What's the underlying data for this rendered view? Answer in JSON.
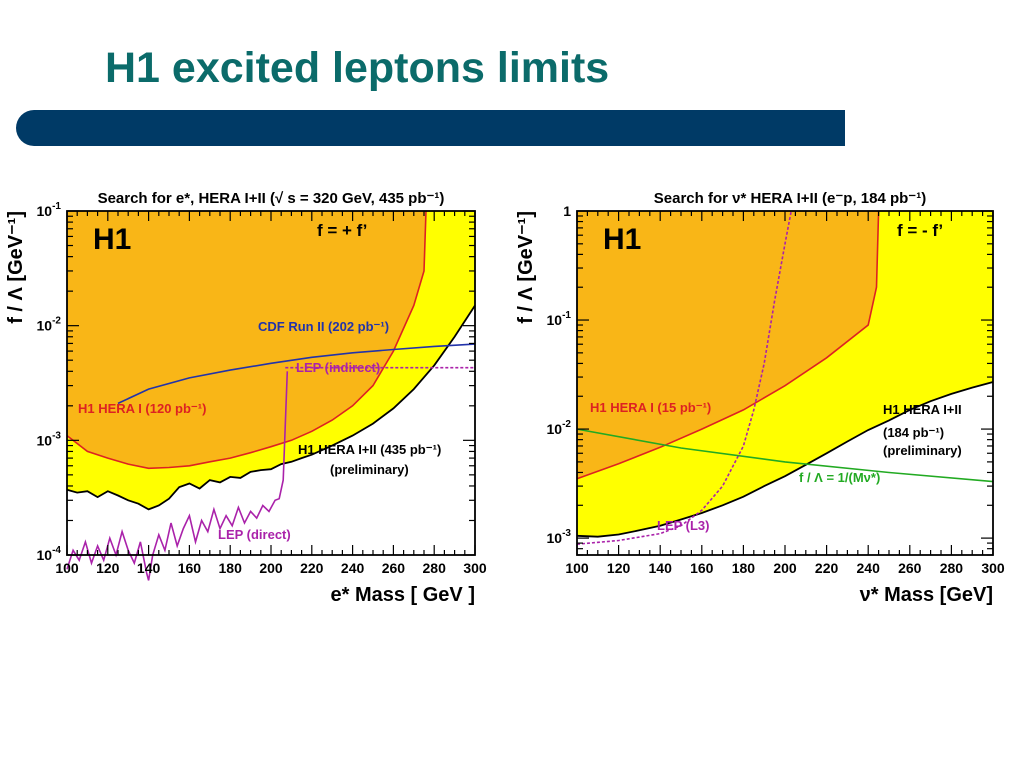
{
  "slide": {
    "title": "H1 excited leptons limits"
  },
  "colors": {
    "title": "#0b6b6a",
    "bar": "#003a66",
    "excluded_h1_hera_i": "#f9b617",
    "excluded_h1_hera_i_ii": "#ffff00",
    "cdf": "#2233aa",
    "lep": "#aa22aa",
    "hera_i_line": "#dd2222",
    "contact": "#22aa22"
  },
  "chart_data": [
    {
      "type": "area",
      "title": "Search for e*, HERA I+II (√ s = 320 GeV, 435 pb⁻¹)",
      "xlabel": "e* Mass [ GeV ]",
      "ylabel": "f / Λ [GeV⁻¹]",
      "xlim": [
        100,
        300
      ],
      "ylim": [
        0.0001,
        0.1
      ],
      "yscale": "log",
      "xticks": [
        "100",
        "120",
        "140",
        "160",
        "180",
        "200",
        "220",
        "240",
        "260",
        "280",
        "300"
      ],
      "yticks": [
        {
          "base": "10",
          "exp": "-4",
          "value": 0.0001
        },
        {
          "base": "10",
          "exp": "-3",
          "value": 0.001
        },
        {
          "base": "10",
          "exp": "-2",
          "value": 0.01
        },
        {
          "base": "10",
          "exp": "-1",
          "value": 0.1
        }
      ],
      "experiment_label": "H1",
      "coupling_label": "f = + f’",
      "series": [
        {
          "name": "H1 HERA I (120 pb-1)",
          "label": "H1 HERA I (120 pb⁻¹)",
          "role": "excluded-region-boundary",
          "x": [
            100,
            110,
            120,
            130,
            140,
            150,
            160,
            170,
            180,
            190,
            200,
            210,
            220,
            230,
            240,
            250,
            260,
            270,
            275,
            276
          ],
          "y": [
            0.0011,
            0.0008,
            0.0007,
            0.00062,
            0.00057,
            0.00058,
            0.0006,
            0.00065,
            0.0007,
            0.00078,
            0.00088,
            0.001,
            0.0012,
            0.0015,
            0.002,
            0.003,
            0.006,
            0.015,
            0.03,
            0.1
          ]
        },
        {
          "name": "H1 HERA I+II (435 pb-1) (preliminary)",
          "label": "H1 HERA I+II (435 pb⁻¹)",
          "label2": "(preliminary)",
          "role": "excluded-region-boundary",
          "x": [
            100,
            105,
            110,
            115,
            120,
            125,
            130,
            135,
            140,
            145,
            150,
            155,
            160,
            165,
            170,
            175,
            180,
            185,
            190,
            195,
            200,
            205,
            210,
            215,
            220,
            230,
            240,
            250,
            260,
            270,
            280,
            290,
            300
          ],
          "y": [
            0.00037,
            0.00035,
            0.00036,
            0.00032,
            0.00036,
            0.00033,
            0.0003,
            0.00028,
            0.00025,
            0.00027,
            0.00031,
            0.00039,
            0.00042,
            0.00038,
            0.00045,
            0.00043,
            0.00048,
            0.00047,
            0.00053,
            0.00055,
            0.00056,
            0.00062,
            0.00065,
            0.0007,
            0.00075,
            0.0009,
            0.0011,
            0.0014,
            0.0019,
            0.0028,
            0.0045,
            0.008,
            0.015
          ]
        },
        {
          "name": "CDF Run II (202 pb-1)",
          "label": "CDF Run II (202 pb⁻¹)",
          "role": "line",
          "x": [
            125,
            140,
            160,
            180,
            200,
            220,
            240,
            260,
            280,
            300
          ],
          "y": [
            0.0021,
            0.0028,
            0.0035,
            0.0041,
            0.0047,
            0.0053,
            0.0058,
            0.0062,
            0.0066,
            0.0069
          ]
        },
        {
          "name": "LEP (direct)",
          "label": "LEP (direct)",
          "role": "line",
          "x": [
            100,
            103,
            106,
            109,
            112,
            115,
            118,
            121,
            124,
            127,
            130,
            133,
            136,
            139,
            140,
            142,
            145,
            148,
            151,
            154,
            157,
            160,
            163,
            166,
            169,
            172,
            175,
            178,
            181,
            184,
            187,
            190,
            193,
            196,
            199,
            202,
            204,
            206,
            208
          ],
          "y": [
            7.5e-05,
            0.00011,
            9e-05,
            0.00013,
            8.5e-05,
            0.00012,
            9e-05,
            0.00014,
            0.0001,
            0.00016,
            0.00011,
            8.5e-05,
            0.00013,
            7e-05,
            6e-05,
            0.0001,
            0.00015,
            0.00011,
            0.00019,
            0.00012,
            0.00017,
            0.00022,
            0.00013,
            0.0002,
            0.00016,
            0.00025,
            0.00017,
            0.00022,
            0.00018,
            0.00026,
            0.00019,
            0.00024,
            0.00021,
            0.00027,
            0.00024,
            0.0003,
            0.00031,
            0.00045,
            0.004
          ]
        },
        {
          "name": "LEP (indirect)",
          "label": "LEP (indirect)",
          "role": "dashed-line",
          "x": [
            207,
            250,
            300
          ],
          "y": [
            0.0043,
            0.0043,
            0.0043
          ]
        }
      ]
    },
    {
      "type": "area",
      "title": "Search for ν* HERA I+II (e⁻p, 184 pb⁻¹)",
      "xlabel": "ν* Mass [GeV]",
      "ylabel": "f / Λ [GeV⁻¹]",
      "xlim": [
        100,
        300
      ],
      "ylim": [
        0.0007,
        1
      ],
      "yscale": "log",
      "xticks": [
        "100",
        "120",
        "140",
        "160",
        "180",
        "200",
        "220",
        "240",
        "260",
        "280",
        "300"
      ],
      "yticks": [
        {
          "base": "10",
          "exp": "-3",
          "value": 0.001
        },
        {
          "base": "10",
          "exp": "-2",
          "value": 0.01
        },
        {
          "base": "10",
          "exp": "-1",
          "value": 0.1
        },
        {
          "base": "1",
          "exp": "",
          "value": 1
        }
      ],
      "experiment_label": "H1",
      "coupling_label": "f = - f’",
      "series": [
        {
          "name": "H1 HERA I (15 pb-1)",
          "label": "H1 HERA I (15 pb⁻¹)",
          "role": "excluded-region-boundary",
          "x": [
            100,
            120,
            140,
            160,
            180,
            200,
            220,
            240,
            244,
            245
          ],
          "y": [
            0.0035,
            0.0048,
            0.0068,
            0.01,
            0.015,
            0.025,
            0.045,
            0.09,
            0.2,
            1
          ]
        },
        {
          "name": "H1 HERA I+II (184 pb-1) (preliminary)",
          "label": "H1 HERA I+II",
          "label2": "(184 pb⁻¹)",
          "label3": "(preliminary)",
          "role": "excluded-region-boundary",
          "x": [
            100,
            110,
            120,
            130,
            140,
            150,
            160,
            170,
            180,
            190,
            200,
            210,
            220,
            230,
            240,
            250,
            260,
            270,
            280,
            290,
            300
          ],
          "y": [
            0.00105,
            0.00103,
            0.00108,
            0.00118,
            0.0013,
            0.00148,
            0.0017,
            0.002,
            0.0024,
            0.003,
            0.0037,
            0.0047,
            0.006,
            0.0077,
            0.0098,
            0.012,
            0.015,
            0.018,
            0.021,
            0.024,
            0.027
          ]
        },
        {
          "name": "LEP (L3)",
          "label": "LEP (L3)",
          "role": "dashed-line",
          "x": [
            100,
            120,
            140,
            150,
            160,
            170,
            180,
            185,
            190,
            195,
            200,
            203
          ],
          "y": [
            0.00088,
            0.00095,
            0.0011,
            0.0013,
            0.0018,
            0.003,
            0.007,
            0.015,
            0.04,
            0.15,
            0.5,
            1
          ]
        },
        {
          "name": "f / Λ = 1/(Mν*)",
          "label": "f / Λ  = 1/(Mν*)",
          "role": "line",
          "x": [
            100,
            150,
            200,
            250,
            300
          ],
          "y": [
            0.01,
            0.0067,
            0.005,
            0.004,
            0.0033
          ]
        }
      ]
    }
  ]
}
